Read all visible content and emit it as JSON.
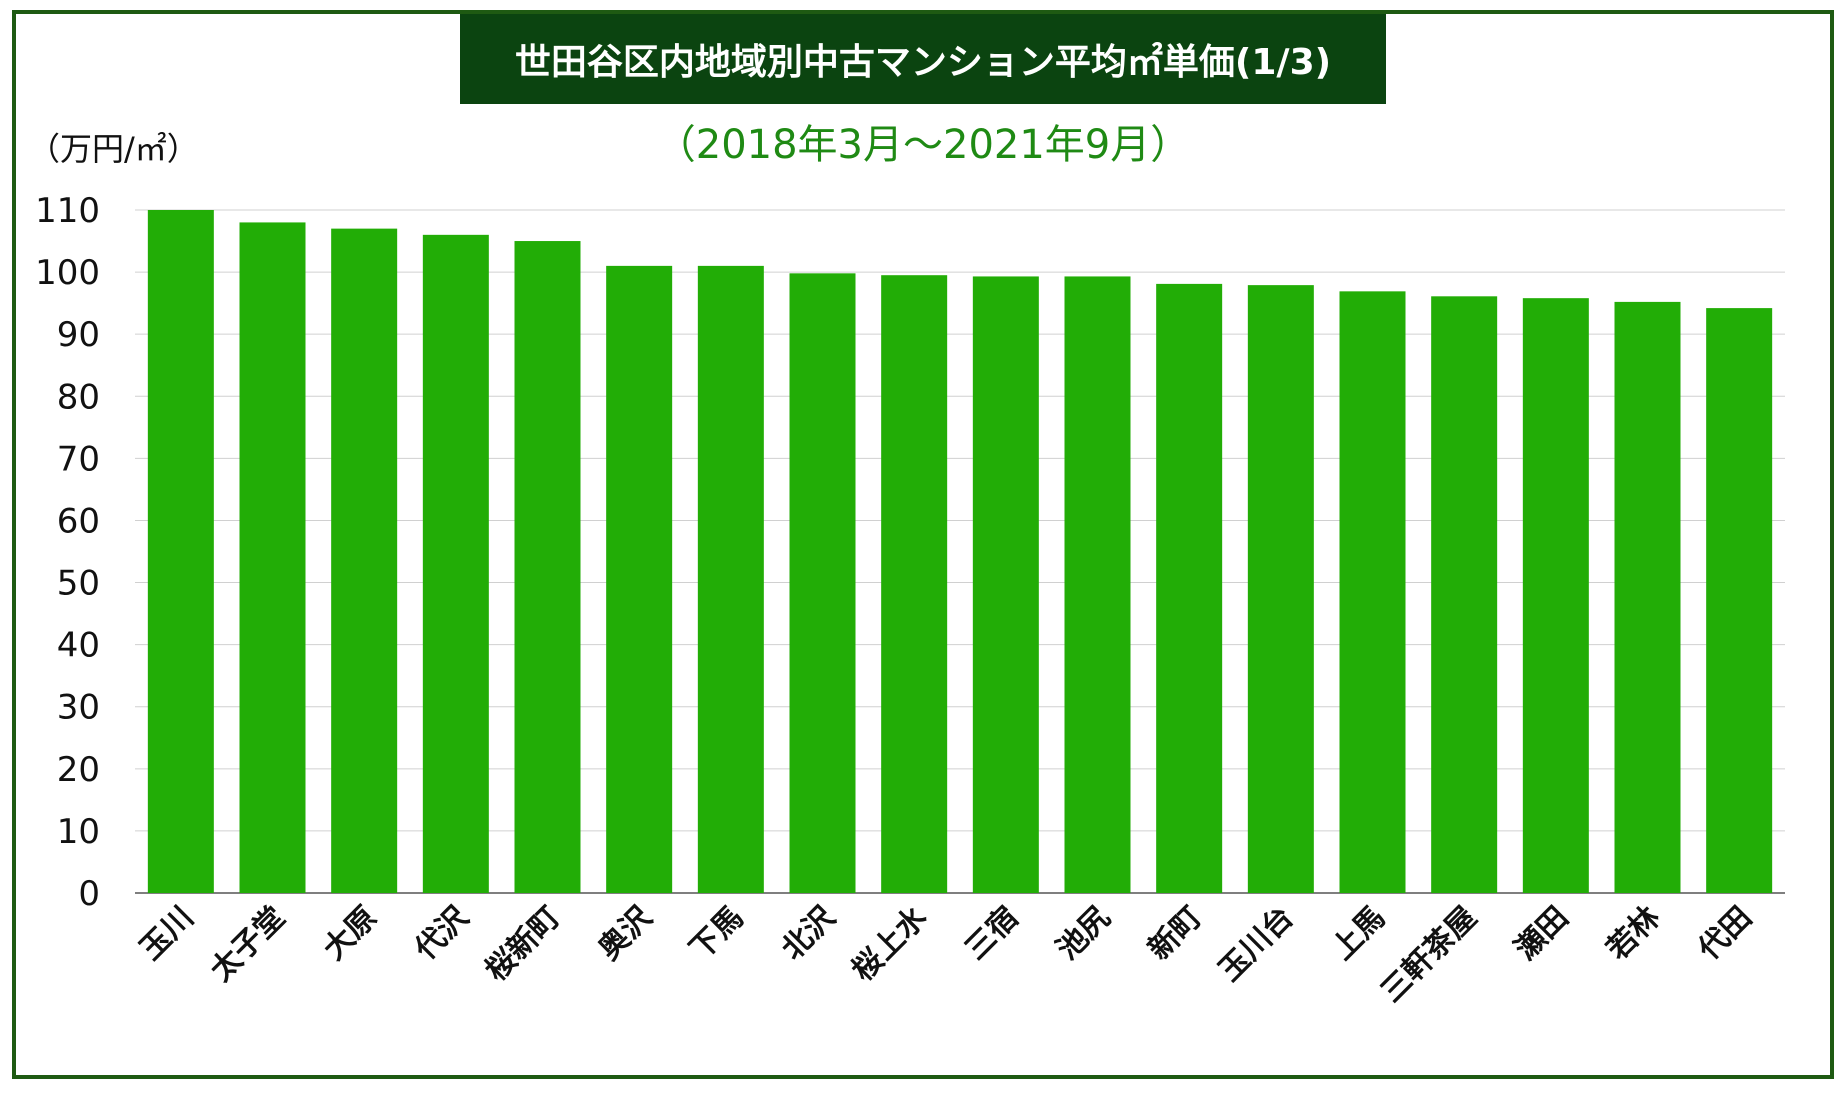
{
  "title": "世田谷区内地域別中古マンション平均㎡単価(1/3)",
  "subtitle": "（2018年3月〜2021年9月）",
  "colors": {
    "frame": "#1e5a12",
    "title_bg": "#0b4410",
    "title_text": "#ffffff",
    "subtitle": "#1f8a14",
    "bar": "#22ad06",
    "grid": "#d0d0d0"
  },
  "chart_data": {
    "type": "bar",
    "ylabel": "（万円/㎡）",
    "ylim": [
      0,
      110
    ],
    "yticks": [
      0,
      10,
      20,
      30,
      40,
      50,
      60,
      70,
      80,
      90,
      100,
      110
    ],
    "grid": true,
    "categories": [
      "玉川",
      "太子堂",
      "大原",
      "代沢",
      "桜新町",
      "奥沢",
      "下馬",
      "北沢",
      "桜上水",
      "三宿",
      "池尻",
      "新町",
      "玉川台",
      "上馬",
      "三軒茶屋",
      "瀬田",
      "若林",
      "代田"
    ],
    "values": [
      110,
      108,
      107,
      106,
      105,
      101,
      101,
      99.8,
      99.5,
      99.3,
      99.3,
      98.1,
      97.9,
      96.9,
      96.1,
      95.8,
      95.2,
      94.2
    ]
  }
}
